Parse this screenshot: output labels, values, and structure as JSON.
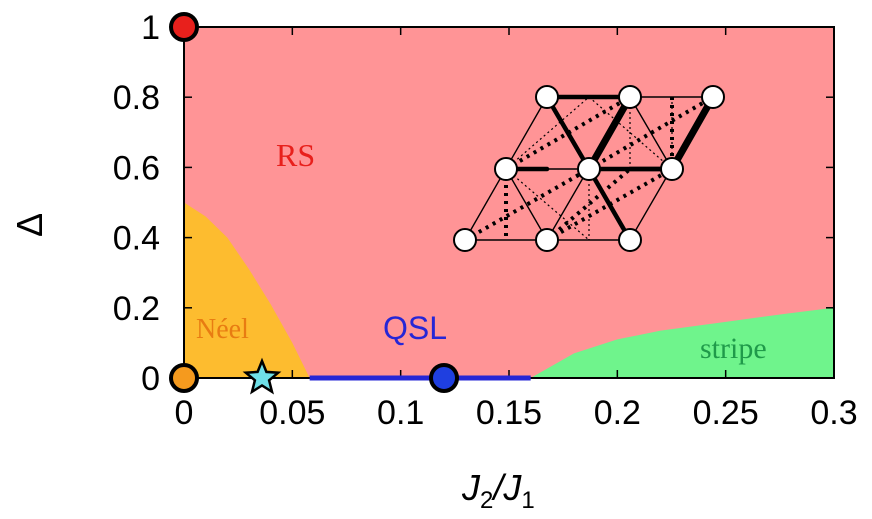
{
  "chart_data": {
    "type": "area",
    "title": "",
    "xlabel": {
      "main": "J",
      "sub1": "2",
      "slash": "/J",
      "sub2": "1"
    },
    "ylabel": "Δ",
    "xlim": [
      0,
      0.3
    ],
    "ylim": [
      0,
      1
    ],
    "xticks": [
      0,
      0.05,
      0.1,
      0.15,
      0.2,
      0.25,
      0.3
    ],
    "xtick_labels": [
      "0",
      "0.05",
      "0.1",
      "0.15",
      "0.2",
      "0.25",
      "0.3"
    ],
    "yticks": [
      0,
      0.2,
      0.4,
      0.6,
      0.8,
      1
    ],
    "ytick_labels": [
      "0",
      "0.2",
      "0.4",
      "0.6",
      "0.8",
      "1"
    ],
    "regions": [
      {
        "name": "RS",
        "label": "RS",
        "color": "#ff9496",
        "label_color": "#e8201c"
      },
      {
        "name": "Neel",
        "label": "Néel",
        "color": "#fdbc2f",
        "label_color": "#e87c12",
        "boundary": [
          [
            0,
            0.5
          ],
          [
            0.01,
            0.46
          ],
          [
            0.02,
            0.4
          ],
          [
            0.03,
            0.31
          ],
          [
            0.04,
            0.21
          ],
          [
            0.05,
            0.1
          ],
          [
            0.058,
            0
          ]
        ]
      },
      {
        "name": "stripe",
        "label": "stripe",
        "color": "#6ff48c",
        "label_color": "#1f9a4a",
        "boundary": [
          [
            0.16,
            0
          ],
          [
            0.18,
            0.07
          ],
          [
            0.2,
            0.11
          ],
          [
            0.22,
            0.135
          ],
          [
            0.25,
            0.16
          ],
          [
            0.28,
            0.185
          ],
          [
            0.3,
            0.2
          ]
        ]
      }
    ],
    "qsl_line": {
      "label": "QSL",
      "color": "#2626d6",
      "x_range": [
        0.058,
        0.16
      ],
      "y": 0
    },
    "points": [
      {
        "name": "red-point",
        "x": 0,
        "y": 1,
        "color": "#e8201c",
        "marker": "circle"
      },
      {
        "name": "orange-point",
        "x": 0,
        "y": 0,
        "color": "#f59a1e",
        "marker": "circle"
      },
      {
        "name": "star-point",
        "x": 0.036,
        "y": 0,
        "color": "#6fe0e8",
        "marker": "star"
      },
      {
        "name": "blue-point",
        "x": 0.12,
        "y": 0,
        "color": "#1f3fe0",
        "marker": "circle"
      }
    ]
  }
}
